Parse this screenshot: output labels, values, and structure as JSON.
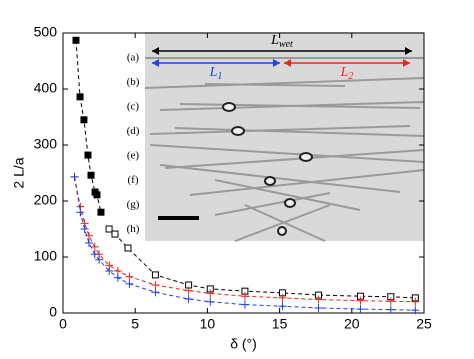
{
  "chart_data": {
    "type": "line",
    "xlabel": "δ (°)",
    "ylabel": "2 L/a",
    "xlim": [
      0,
      25
    ],
    "ylim": [
      0,
      500
    ],
    "xticks": [
      0,
      5,
      10,
      15,
      20,
      25
    ],
    "yticks": [
      0,
      100,
      200,
      300,
      400,
      500
    ],
    "series": [
      {
        "color": "#000000",
        "marker": "filled-square",
        "dashed": true,
        "x": [
          0.9,
          1.18,
          1.45,
          1.73,
          1.94,
          2.22,
          2.35,
          2.63
        ],
        "values": [
          487,
          386,
          345,
          282,
          246,
          216,
          211,
          180
        ]
      },
      {
        "color": "#000000",
        "marker": "open-square",
        "dashed": true,
        "x": [
          3.19,
          3.6,
          4.5,
          6.4,
          8.7,
          10.2,
          12.6,
          15.2,
          17.7,
          20.6,
          22.7,
          24.4
        ],
        "values": [
          150,
          141,
          116,
          68,
          50,
          43,
          39,
          36,
          32,
          30,
          29,
          27
        ]
      },
      {
        "color": "#e8281e",
        "marker": "plus",
        "dashed": true,
        "x": [
          0.8,
          1.2,
          1.5,
          1.8,
          2.2,
          2.5,
          3.2,
          3.8,
          4.6,
          6.4,
          8.7,
          10.2,
          12.6,
          15.2,
          17.7,
          20.6,
          22.7,
          24.4
        ],
        "values": [
          243,
          190,
          160,
          138,
          118,
          105,
          85,
          75,
          65,
          50,
          40,
          35,
          30,
          27,
          24,
          22,
          21,
          20
        ]
      },
      {
        "color": "#1f3fe0",
        "marker": "plus",
        "dashed": true,
        "x": [
          0.8,
          1.2,
          1.5,
          1.8,
          2.2,
          2.5,
          3.2,
          3.8,
          4.6,
          6.4,
          8.7,
          10.2,
          12.6,
          15.2,
          17.7,
          20.6,
          22.7,
          24.4
        ],
        "values": [
          243,
          180,
          150,
          125,
          105,
          95,
          75,
          63,
          52,
          37,
          25,
          20,
          15,
          12,
          9,
          7,
          6,
          5
        ]
      }
    ],
    "inset": {
      "panel_labels": [
        "(a)",
        "(b)",
        "(c)",
        "(d)",
        "(e)",
        "(f)",
        "(g)",
        "(h)"
      ],
      "l_wet": {
        "main": "L",
        "sub": "wet",
        "color": "#000000"
      },
      "l1": {
        "main": "L",
        "sub": "1",
        "color": "#1f3fe0"
      },
      "l2": {
        "main": "L",
        "sub": "2",
        "color": "#e8281e"
      }
    }
  }
}
